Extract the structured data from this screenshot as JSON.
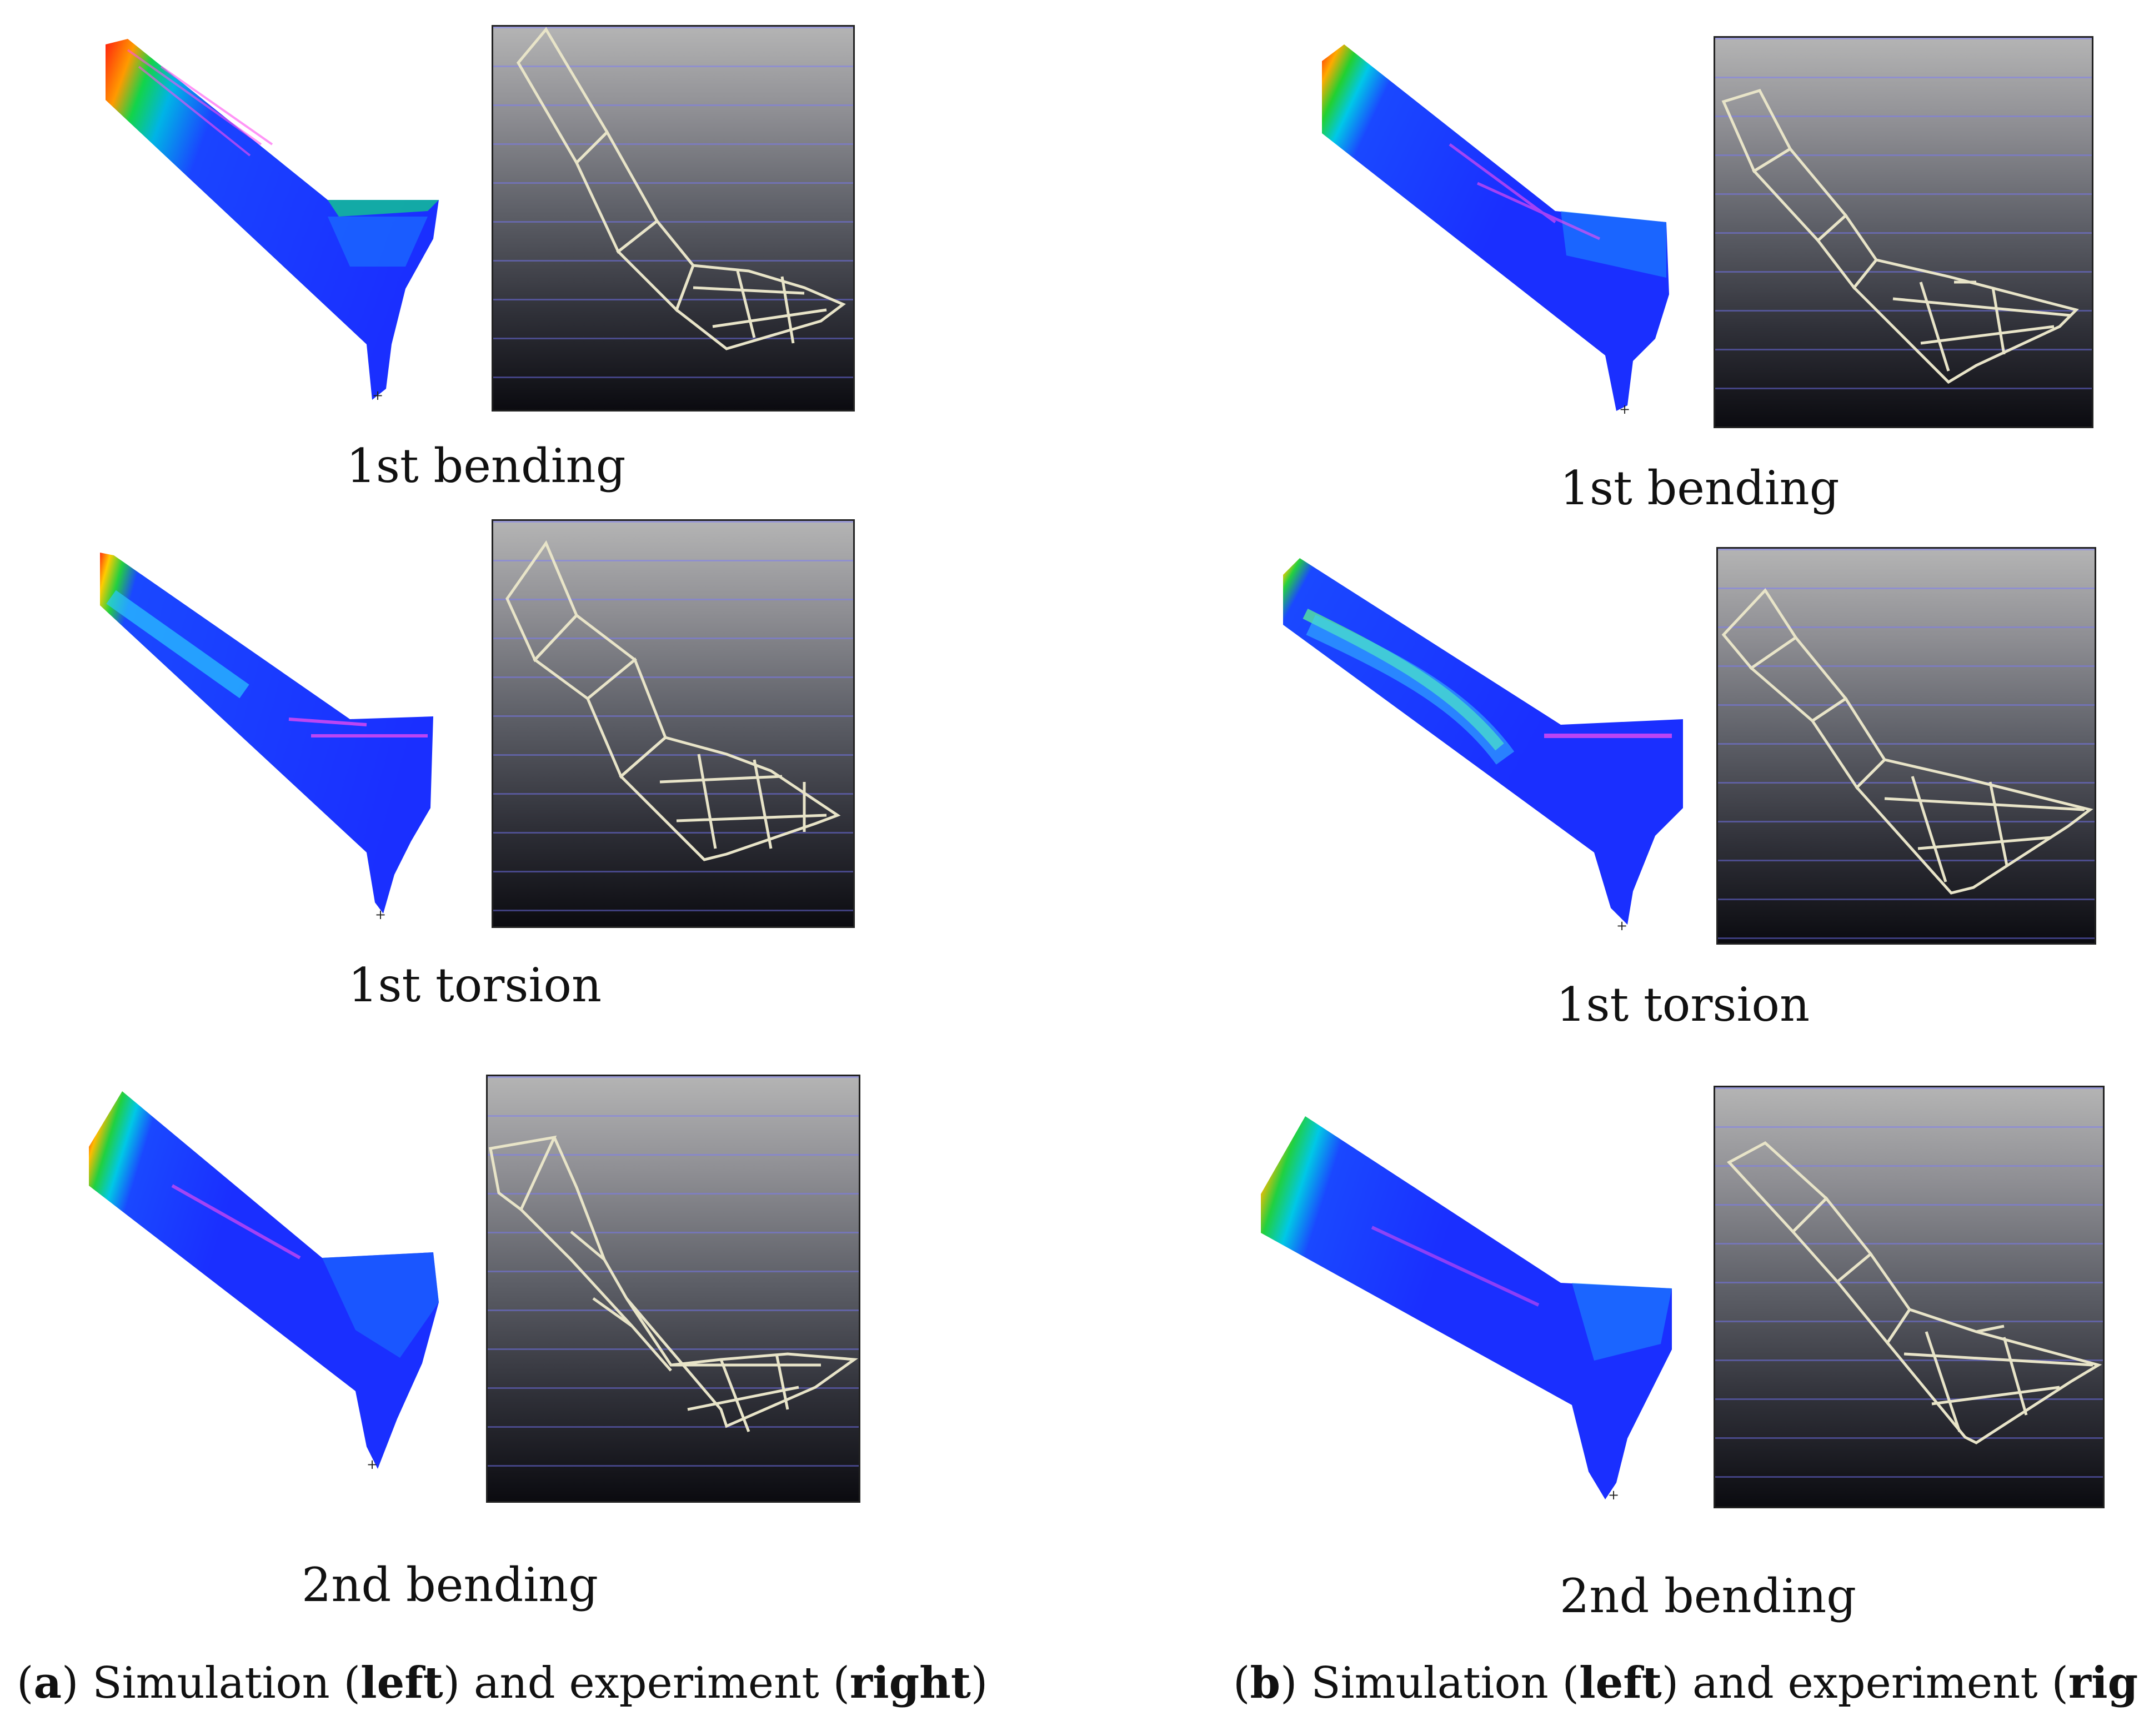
{
  "panels": [
    {
      "id": "a",
      "modes": [
        "1st bending",
        "1st torsion",
        "2nd bending"
      ],
      "caption": {
        "open": "(",
        "letter": "a",
        "mid1": ") Simulation (",
        "left": "left",
        "mid2": ") and experiment (",
        "right": "right",
        "close": ")"
      }
    },
    {
      "id": "b",
      "modes": [
        "1st bending",
        "1st torsion",
        "2nd bending"
      ],
      "caption": {
        "open": "(",
        "letter": "b",
        "mid1": ") Simulation (",
        "left": "left",
        "mid2": ") and experiment (",
        "right": "right",
        "close": ")"
      }
    }
  ]
}
